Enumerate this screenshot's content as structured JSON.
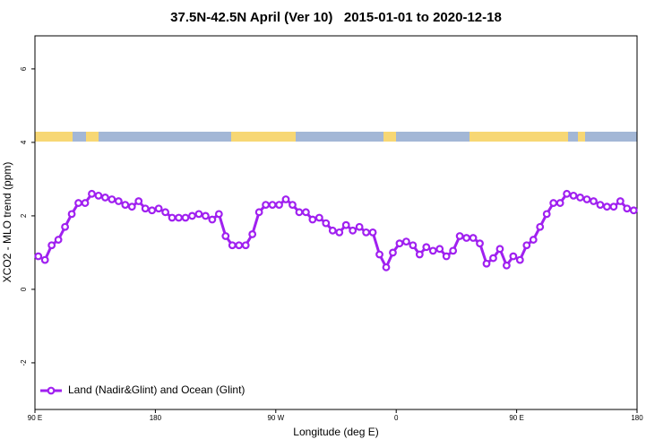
{
  "chart_data": {
    "type": "line",
    "title": "37.5N-42.5N April (Ver 10)   2015-01-01 to 2020-12-18",
    "xlabel": "Longitude (deg E)",
    "ylabel": "XCO2 - MLO trend (ppm)",
    "xlim": [
      90,
      540
    ],
    "ylim": [
      -3.27,
      6.9
    ],
    "xticks": [
      {
        "value": 90,
        "label": "90 E"
      },
      180,
      {
        "value": 270,
        "label": "90 W"
      },
      {
        "value": 360,
        "label": "0"
      },
      {
        "value": 450,
        "label": "90 E"
      },
      {
        "value": 540,
        "label": "180"
      }
    ],
    "yticks": [
      -2,
      0,
      2,
      4,
      6
    ],
    "legend": "bottom-left",
    "series": [
      {
        "name": "Land (Nadir&Glint) and Ocean (Glint)",
        "color": "#a020f0",
        "x": [
          92.5,
          97.5,
          102.5,
          107.5,
          112.5,
          117.5,
          122.5,
          127.5,
          132.5,
          137.5,
          142.5,
          147.5,
          152.5,
          157.5,
          162.5,
          167.5,
          172.5,
          177.5,
          182.5,
          187.5,
          192.5,
          197.5,
          202.5,
          207.5,
          212.5,
          217.5,
          222.5,
          227.5,
          232.5,
          237.5,
          242.5,
          247.5,
          252.5,
          257.5,
          262.5,
          267.5,
          272.5,
          277.5,
          282.5,
          287.5,
          292.5,
          297.5,
          302.5,
          307.5,
          312.5,
          317.5,
          322.5,
          327.5,
          332.5,
          337.5,
          342.5,
          347.5,
          352.5,
          357.5,
          362.5,
          367.5,
          372.5,
          377.5,
          382.5,
          387.5,
          392.5,
          397.5,
          402.5,
          407.5,
          412.5,
          417.5,
          422.5,
          427.5,
          432.5,
          437.5,
          442.5,
          447.5,
          452.5,
          457.5,
          462.5,
          467.5,
          472.5,
          477.5,
          482.5,
          487.5,
          492.5,
          497.5,
          502.5,
          507.5,
          512.5,
          517.5,
          522.5,
          527.5,
          532.5,
          537.5
        ],
        "values": [
          0.9,
          0.8,
          1.2,
          1.35,
          1.7,
          2.05,
          2.35,
          2.35,
          2.6,
          2.55,
          2.5,
          2.45,
          2.4,
          2.3,
          2.25,
          2.4,
          2.2,
          2.15,
          2.2,
          2.1,
          1.95,
          1.95,
          1.95,
          2.0,
          2.05,
          2.0,
          1.9,
          2.05,
          1.45,
          1.2,
          1.2,
          1.2,
          1.5,
          2.1,
          2.3,
          2.3,
          2.3,
          2.45,
          2.3,
          2.1,
          2.1,
          1.9,
          1.95,
          1.8,
          1.6,
          1.55,
          1.75,
          1.6,
          1.7,
          1.55,
          1.55,
          0.95,
          0.6,
          1.0,
          1.25,
          1.3,
          1.2,
          0.95,
          1.15,
          1.05,
          1.1,
          0.9,
          1.05,
          1.45,
          1.4,
          1.4,
          1.25,
          0.7,
          0.85,
          1.1,
          0.65,
          0.9,
          0.8,
          1.2,
          1.35,
          1.7,
          2.05,
          2.35,
          2.35,
          2.6,
          2.55,
          2.5,
          2.45,
          2.4,
          2.3,
          2.25,
          2.25,
          2.4,
          2.2,
          2.15
        ]
      }
    ]
  }
}
